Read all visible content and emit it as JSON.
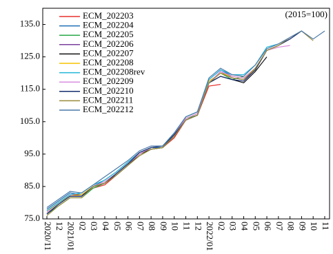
{
  "chart_data": {
    "type": "line",
    "annotation": "(2015=100)",
    "categories": [
      "2020/11",
      "12",
      "2021/01",
      "02",
      "03",
      "04",
      "05",
      "06",
      "07",
      "08",
      "09",
      "10",
      "11",
      "12",
      "2022/01",
      "02",
      "03",
      "04",
      "05",
      "06",
      "07",
      "08",
      "09",
      "10",
      "11"
    ],
    "series": [
      {
        "name": "ECM_202203",
        "color": "#e8312f",
        "values": [
          77.5,
          80,
          82.5,
          82.5,
          84.5,
          85.5,
          88.5,
          91.5,
          94.5,
          96.5,
          97,
          100,
          105.5,
          107,
          116,
          116.5,
          null,
          null,
          null,
          null,
          null,
          null,
          null,
          null,
          null
        ]
      },
      {
        "name": "ECM_202204",
        "color": "#1f6fb4",
        "values": [
          78,
          80.5,
          83,
          82.5,
          85,
          87,
          89.5,
          92.5,
          95.5,
          97,
          97,
          101,
          106.5,
          108,
          118,
          121,
          119,
          null,
          null,
          null,
          null,
          null,
          null,
          null,
          null
        ]
      },
      {
        "name": "ECM_202205",
        "color": "#2aa84a",
        "values": [
          76.5,
          79,
          81.5,
          81.5,
          84.5,
          86,
          88.5,
          91.5,
          94.5,
          96.5,
          97,
          100.5,
          106,
          107,
          117,
          120,
          118,
          119,
          null,
          null,
          null,
          null,
          null,
          null,
          null
        ]
      },
      {
        "name": "ECM_202206",
        "color": "#7a3fa0",
        "values": [
          77,
          79.5,
          82,
          82,
          85,
          86,
          89,
          92,
          95,
          97,
          97.5,
          101,
          106,
          107.5,
          117,
          120.5,
          118.5,
          118,
          121,
          null,
          null,
          null,
          null,
          null,
          null
        ]
      },
      {
        "name": "ECM_202207",
        "color": "#111111",
        "values": [
          76.5,
          79.5,
          82,
          82,
          85,
          86,
          88.5,
          91.5,
          95,
          96.5,
          97,
          100.5,
          105.5,
          107,
          117,
          119,
          118,
          117,
          120.5,
          125,
          null,
          null,
          null,
          null,
          null
        ]
      },
      {
        "name": "ECM_202208",
        "color": "#f5c400",
        "values": [
          77,
          80,
          82,
          82.5,
          85,
          86.5,
          89,
          92,
          95,
          97,
          97.5,
          101,
          106,
          107.5,
          117.5,
          120,
          119,
          118.5,
          121,
          127,
          128,
          null,
          null,
          null,
          null
        ]
      },
      {
        "name": "ECM_202208rev",
        "color": "#20b6d8",
        "values": [
          77.5,
          80,
          82.5,
          83,
          85.5,
          87,
          89.5,
          92.5,
          95.5,
          97,
          97.5,
          101.5,
          106.5,
          108,
          118,
          121,
          119.5,
          119.5,
          122.5,
          128,
          129,
          null,
          null,
          null,
          null
        ]
      },
      {
        "name": "ECM_202209",
        "color": "#d98ee0",
        "values": [
          77,
          79.5,
          82,
          82,
          85,
          86.5,
          89,
          92,
          95,
          97,
          97.5,
          101,
          106,
          107.5,
          117,
          120.5,
          119,
          118.5,
          121.5,
          127,
          128,
          128.5,
          null,
          null,
          null
        ]
      },
      {
        "name": "ECM_202210",
        "color": "#142c6e",
        "values": [
          76.5,
          79.5,
          82,
          82,
          85,
          86,
          89,
          92,
          95.5,
          97,
          97.5,
          101,
          105.5,
          107,
          117,
          119,
          118,
          117.5,
          121,
          127,
          128.5,
          130.5,
          133,
          null,
          null
        ]
      },
      {
        "name": "ECM_202211",
        "color": "#9a8a3a",
        "values": [
          76,
          79,
          81.5,
          81.5,
          85,
          86,
          88.5,
          91.5,
          94.5,
          96.5,
          97,
          100.5,
          105.5,
          107,
          117,
          120,
          118.5,
          118,
          121.5,
          127,
          128.5,
          131,
          133,
          130,
          null
        ]
      },
      {
        "name": "ECM_202212",
        "color": "#4a78a8",
        "values": [
          78.5,
          81,
          83.5,
          83,
          85.5,
          88,
          90.5,
          93,
          96,
          97.5,
          97.5,
          101.5,
          106.5,
          108,
          118.5,
          121.5,
          119.5,
          119,
          122.5,
          127.5,
          129,
          131,
          133,
          130.5,
          133
        ]
      }
    ],
    "ylim": [
      75,
      140
    ],
    "yticks": [
      {
        "value": 75,
        "label": "75.0"
      },
      {
        "value": 85,
        "label": "85.0"
      },
      {
        "value": 95,
        "label": "95.0"
      },
      {
        "value": 105,
        "label": "105.0"
      },
      {
        "value": 115,
        "label": "115.0"
      },
      {
        "value": 125,
        "label": "125.0"
      },
      {
        "value": 135,
        "label": "135.0"
      }
    ],
    "grid": false,
    "legend": "upper left"
  }
}
